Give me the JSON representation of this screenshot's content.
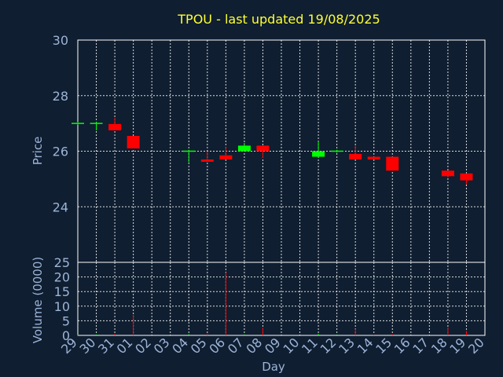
{
  "chart_data": {
    "type": "candlestick",
    "title": "TPOU - last updated 19/08/2025",
    "xlabel": "Day",
    "ylabel_price": "Price",
    "ylabel_volume": "Volume (0000)",
    "x_tick_labels": [
      "29",
      "30",
      "31",
      "01",
      "02",
      "03",
      "04",
      "05",
      "06",
      "07",
      "08",
      "09",
      "10",
      "11",
      "12",
      "13",
      "14",
      "15",
      "16",
      "17",
      "18",
      "19",
      "20"
    ],
    "price_ticks": [
      "30",
      "28",
      "26",
      "24"
    ],
    "volume_ticks": [
      "25",
      "20",
      "15",
      "10",
      "5",
      "0"
    ],
    "price_ylim": [
      22.0,
      30.0
    ],
    "volume_ylim": [
      0,
      25
    ],
    "grid": true,
    "colors": {
      "background": "#0f1e30",
      "up": "#00ff00",
      "down": "#ff0000",
      "title": "#ffff33",
      "axis_text": "#9cb4d8",
      "grid": "#ffffff"
    },
    "candles": [
      {
        "x": 0,
        "open": 27.0,
        "close": 27.0,
        "high": 27.05,
        "low": 26.95,
        "volume": 0.2
      },
      {
        "x": 1,
        "open": 27.0,
        "close": 27.0,
        "high": 27.05,
        "low": 26.75,
        "volume": 0.3
      },
      {
        "x": 2,
        "open": 26.98,
        "close": 26.75,
        "high": 27.2,
        "low": 26.75,
        "volume": 0.6
      },
      {
        "x": 3,
        "open": 26.55,
        "close": 26.1,
        "high": 26.55,
        "low": 26.1,
        "volume": 7.0
      },
      {
        "x": 6,
        "open": 26.0,
        "close": 26.0,
        "high": 26.05,
        "low": 25.6,
        "volume": 0.4
      },
      {
        "x": 7,
        "open": 25.7,
        "close": 25.62,
        "high": 26.0,
        "low": 25.62,
        "volume": 0.6
      },
      {
        "x": 8,
        "open": 25.85,
        "close": 25.7,
        "high": 26.15,
        "low": 25.7,
        "volume": 21.5
      },
      {
        "x": 9,
        "open": 26.0,
        "close": 26.2,
        "high": 26.3,
        "low": 26.0,
        "volume": 0.3
      },
      {
        "x": 10,
        "open": 26.2,
        "close": 26.0,
        "high": 26.2,
        "low": 25.75,
        "volume": 2.6
      },
      {
        "x": 13,
        "open": 25.8,
        "close": 26.0,
        "high": 26.35,
        "low": 25.8,
        "volume": 0.5
      },
      {
        "x": 14,
        "open": 26.0,
        "close": 26.0,
        "high": 26.05,
        "low": 25.95,
        "volume": 0.2
      },
      {
        "x": 15,
        "open": 25.9,
        "close": 25.7,
        "high": 26.2,
        "low": 25.7,
        "volume": 2.2
      },
      {
        "x": 16,
        "open": 25.8,
        "close": 25.7,
        "high": 25.8,
        "low": 25.7,
        "volume": 0.3
      },
      {
        "x": 17,
        "open": 25.8,
        "close": 25.3,
        "high": 25.8,
        "low": 25.3,
        "volume": 0.4
      },
      {
        "x": 20,
        "open": 25.3,
        "close": 25.1,
        "high": 25.3,
        "low": 25.05,
        "volume": 2.8
      },
      {
        "x": 21,
        "open": 25.2,
        "close": 24.95,
        "high": 25.2,
        "low": 24.8,
        "volume": 1.5
      }
    ]
  }
}
